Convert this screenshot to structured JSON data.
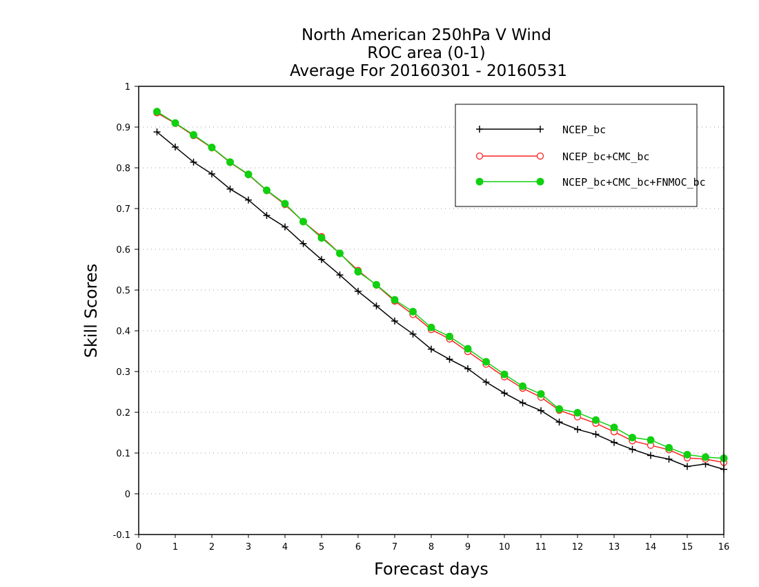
{
  "chart_data": {
    "type": "line",
    "title_lines": [
      "North American 250hPa V Wind",
      "ROC area (0-1)",
      "Average For 20160301 - 20160531"
    ],
    "xlabel": "Forecast days",
    "ylabel": "Skill Scores",
    "xlim": [
      0,
      16
    ],
    "ylim": [
      -0.1,
      1
    ],
    "xticks": [
      0,
      1,
      2,
      3,
      4,
      5,
      6,
      7,
      8,
      9,
      10,
      11,
      12,
      13,
      14,
      15,
      16
    ],
    "yticks": [
      -0.1,
      0,
      0.1,
      0.2,
      0.3,
      0.4,
      0.5,
      0.6,
      0.7,
      0.8,
      0.9,
      1
    ],
    "ytick_labels": [
      "-0.1",
      "0",
      "0.1",
      "0.2",
      "0.3",
      "0.4",
      "0.5",
      "0.6",
      "0.7",
      "0.8",
      "0.9",
      "1"
    ],
    "grid": "horizontal dotted",
    "legend_position": "top-right",
    "x": [
      0.5,
      1,
      1.5,
      2,
      2.5,
      3,
      3.5,
      4,
      4.5,
      5,
      5.5,
      6,
      6.5,
      7,
      7.5,
      8,
      8.5,
      9,
      9.5,
      10,
      10.5,
      11,
      11.5,
      12,
      12.5,
      13,
      13.5,
      14,
      14.5,
      15,
      15.5,
      16
    ],
    "series": [
      {
        "name": "NCEP_bc",
        "color": "#000000",
        "marker": "plus",
        "values": [
          0.888,
          0.851,
          0.814,
          0.785,
          0.748,
          0.721,
          0.683,
          0.655,
          0.614,
          0.575,
          0.537,
          0.497,
          0.461,
          0.424,
          0.392,
          0.355,
          0.33,
          0.307,
          0.274,
          0.247,
          0.223,
          0.204,
          0.176,
          0.158,
          0.146,
          0.126,
          0.109,
          0.094,
          0.085,
          0.067,
          0.073,
          0.06
        ]
      },
      {
        "name": "NCEP_bc+CMC_bc",
        "color": "#ff2020",
        "marker": "open-circle",
        "values": [
          0.935,
          0.909,
          0.879,
          0.849,
          0.813,
          0.783,
          0.744,
          0.71,
          0.668,
          0.631,
          0.59,
          0.548,
          0.512,
          0.473,
          0.44,
          0.403,
          0.38,
          0.349,
          0.318,
          0.287,
          0.259,
          0.237,
          0.205,
          0.189,
          0.173,
          0.152,
          0.13,
          0.119,
          0.108,
          0.088,
          0.085,
          0.077
        ]
      },
      {
        "name": "NCEP_bc+CMC_bc+FNMOC_bc",
        "color": "#10d010",
        "marker": "filled-circle",
        "values": [
          0.938,
          0.91,
          0.881,
          0.85,
          0.814,
          0.784,
          0.745,
          0.712,
          0.668,
          0.628,
          0.59,
          0.545,
          0.513,
          0.476,
          0.447,
          0.408,
          0.386,
          0.356,
          0.324,
          0.293,
          0.264,
          0.245,
          0.208,
          0.199,
          0.181,
          0.163,
          0.138,
          0.132,
          0.113,
          0.096,
          0.09,
          0.087
        ]
      }
    ]
  }
}
